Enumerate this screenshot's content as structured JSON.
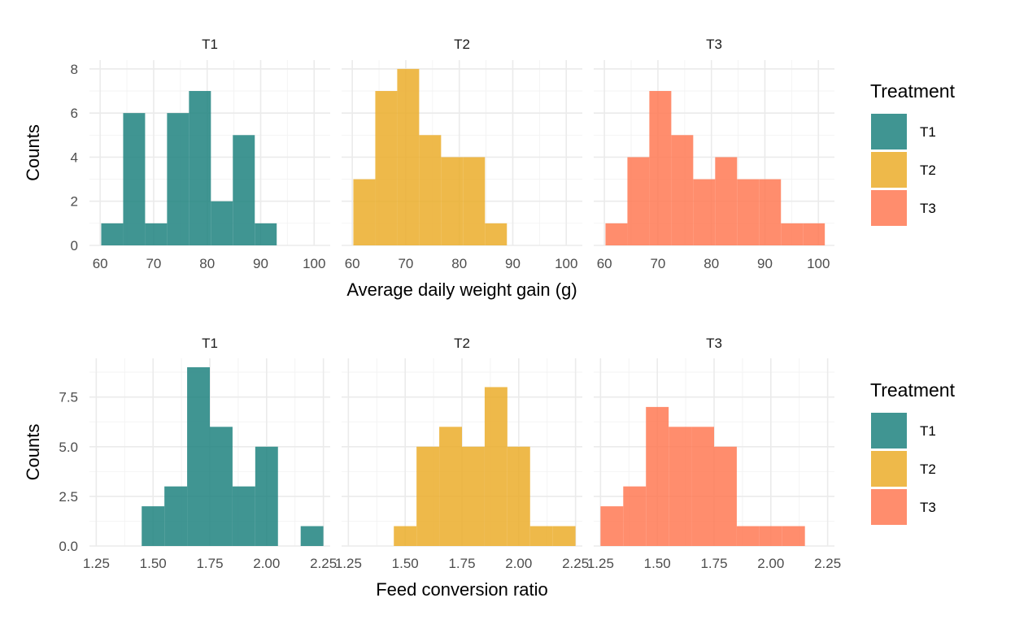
{
  "colors": {
    "T1": "#218380",
    "T2": "#EBAD2C",
    "T3": "#FF7A55"
  },
  "chart_data": [
    {
      "type": "bar",
      "subtype": "faceted-histogram",
      "xlabel": "Average daily weight gain (g)",
      "ylabel": "Counts",
      "xlim": [
        58,
        103
      ],
      "ylim": [
        0,
        8.4
      ],
      "x_ticks": [
        {
          "value": 60,
          "label": "60"
        },
        {
          "value": 70,
          "label": "70"
        },
        {
          "value": 80,
          "label": "80"
        },
        {
          "value": 90,
          "label": "90"
        },
        {
          "value": 100,
          "label": "100"
        }
      ],
      "y_ticks": [
        {
          "value": 0,
          "label": "0"
        },
        {
          "value": 2,
          "label": "2"
        },
        {
          "value": 4,
          "label": "4"
        },
        {
          "value": 6,
          "label": "6"
        },
        {
          "value": 8,
          "label": "8"
        }
      ],
      "y_minor": [
        1,
        3,
        5,
        7
      ],
      "x_minor": [
        65,
        75,
        85,
        95
      ],
      "legend": {
        "title": "Treatment",
        "placement": "right",
        "entries": [
          "T1",
          "T2",
          "T3"
        ]
      },
      "facets": [
        {
          "label": "T1",
          "bin_width": 4.1,
          "bins": [
            {
              "x0": 60.2,
              "count": 1
            },
            {
              "x0": 64.3,
              "count": 6
            },
            {
              "x0": 68.4,
              "count": 1
            },
            {
              "x0": 72.5,
              "count": 6
            },
            {
              "x0": 76.6,
              "count": 7
            },
            {
              "x0": 80.7,
              "count": 2
            },
            {
              "x0": 84.8,
              "count": 5
            },
            {
              "x0": 88.9,
              "count": 1
            }
          ]
        },
        {
          "label": "T2",
          "bin_width": 4.1,
          "bins": [
            {
              "x0": 60.2,
              "count": 3
            },
            {
              "x0": 64.3,
              "count": 7
            },
            {
              "x0": 68.4,
              "count": 8
            },
            {
              "x0": 72.5,
              "count": 5
            },
            {
              "x0": 76.6,
              "count": 4
            },
            {
              "x0": 80.7,
              "count": 4
            },
            {
              "x0": 84.8,
              "count": 1
            }
          ]
        },
        {
          "label": "T3",
          "bin_width": 4.1,
          "bins": [
            {
              "x0": 60.2,
              "count": 1
            },
            {
              "x0": 64.3,
              "count": 4
            },
            {
              "x0": 68.4,
              "count": 7
            },
            {
              "x0": 72.5,
              "count": 5
            },
            {
              "x0": 76.6,
              "count": 3
            },
            {
              "x0": 80.7,
              "count": 4
            },
            {
              "x0": 84.8,
              "count": 3
            },
            {
              "x0": 88.9,
              "count": 3
            },
            {
              "x0": 93.0,
              "count": 1
            },
            {
              "x0": 97.1,
              "count": 1
            }
          ]
        }
      ]
    },
    {
      "type": "bar",
      "subtype": "faceted-histogram",
      "xlabel": "Feed conversion ratio",
      "ylabel": "Counts",
      "xlim": [
        1.22,
        2.28
      ],
      "ylim": [
        0,
        9.45
      ],
      "x_ticks": [
        {
          "value": 1.25,
          "label": "1.25"
        },
        {
          "value": 1.5,
          "label": "1.50"
        },
        {
          "value": 1.75,
          "label": "1.75"
        },
        {
          "value": 2.0,
          "label": "2.00"
        },
        {
          "value": 2.25,
          "label": "2.25"
        }
      ],
      "y_ticks": [
        {
          "value": 0,
          "label": "0.0"
        },
        {
          "value": 2.5,
          "label": "2.5"
        },
        {
          "value": 5,
          "label": "5.0"
        },
        {
          "value": 7.5,
          "label": "7.5"
        }
      ],
      "y_minor": [
        1.25,
        3.75,
        6.25,
        8.75
      ],
      "x_minor": [
        1.375,
        1.625,
        1.875,
        2.125
      ],
      "legend": {
        "title": "Treatment",
        "placement": "right",
        "entries": [
          "T1",
          "T2",
          "T3"
        ]
      },
      "facets": [
        {
          "label": "T1",
          "bin_width": 0.1,
          "bins": [
            {
              "x0": 1.45,
              "count": 2
            },
            {
              "x0": 1.55,
              "count": 3
            },
            {
              "x0": 1.65,
              "count": 9
            },
            {
              "x0": 1.75,
              "count": 6
            },
            {
              "x0": 1.85,
              "count": 3
            },
            {
              "x0": 1.95,
              "count": 5
            },
            {
              "x0": 2.05,
              "count": 0
            },
            {
              "x0": 2.15,
              "count": 1
            }
          ]
        },
        {
          "label": "T2",
          "bin_width": 0.1,
          "bins": [
            {
              "x0": 1.45,
              "count": 1
            },
            {
              "x0": 1.55,
              "count": 5
            },
            {
              "x0": 1.65,
              "count": 6
            },
            {
              "x0": 1.75,
              "count": 5
            },
            {
              "x0": 1.85,
              "count": 8
            },
            {
              "x0": 1.95,
              "count": 5
            },
            {
              "x0": 2.05,
              "count": 1
            },
            {
              "x0": 2.15,
              "count": 1
            }
          ]
        },
        {
          "label": "T3",
          "bin_width": 0.1,
          "bins": [
            {
              "x0": 1.25,
              "count": 2
            },
            {
              "x0": 1.35,
              "count": 3
            },
            {
              "x0": 1.45,
              "count": 7
            },
            {
              "x0": 1.55,
              "count": 6
            },
            {
              "x0": 1.65,
              "count": 6
            },
            {
              "x0": 1.75,
              "count": 5
            },
            {
              "x0": 1.85,
              "count": 1
            },
            {
              "x0": 1.95,
              "count": 1
            },
            {
              "x0": 2.05,
              "count": 1
            }
          ]
        }
      ]
    }
  ]
}
